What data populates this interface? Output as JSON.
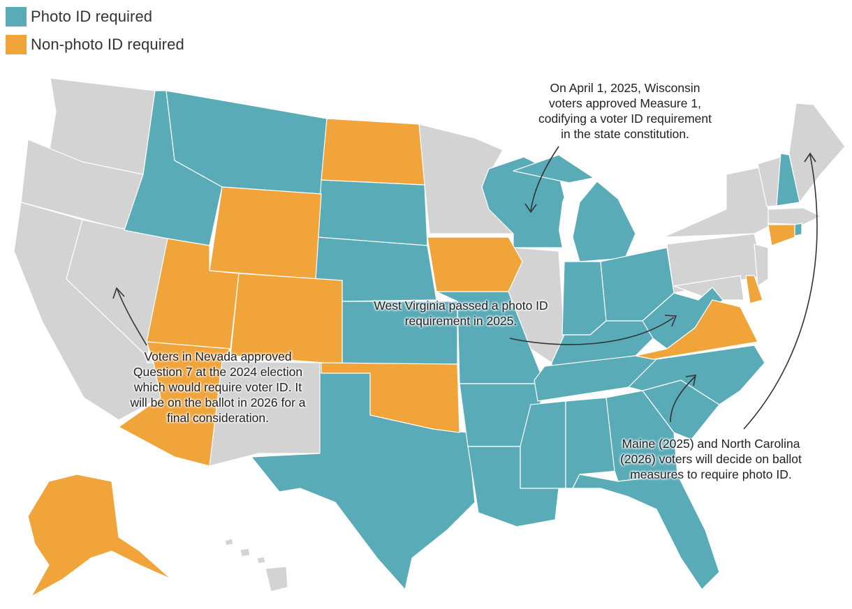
{
  "legend": [
    {
      "label": "Photo ID required",
      "color": "#5aabb8"
    },
    {
      "label": "Non-photo ID required",
      "color": "#f0a43a"
    }
  ],
  "colors": {
    "photo": "#5aabb8",
    "nonphoto": "#f0a43a",
    "none": "#d3d3d3",
    "arrow": "#333333"
  },
  "annotations": {
    "wisconsin": "On April 1, 2025, Wisconsin\nvoters approved Measure 1,\ncodifying a voter ID requirement\nin the state constitution.",
    "west_virginia": "West Virginia passed a photo ID\nrequirement in 2025.",
    "nevada": "Voters in Nevada approved\nQuestion 7 at the 2024 election\nwhich would require voter ID. It\nwill be on the ballot in 2026 for a\nfinal consideration.",
    "maine_nc": "Maine (2025) and North Carolina\n(2026) voters will decide on ballot\nmeasures to require photo ID."
  },
  "states": {
    "photo_id": [
      "Idaho",
      "Montana",
      "South Dakota",
      "Nebraska",
      "Kansas",
      "Texas",
      "Arkansas",
      "Louisiana",
      "Missouri",
      "Wisconsin",
      "Michigan",
      "Indiana",
      "Ohio",
      "Kentucky",
      "Tennessee",
      "Mississippi",
      "Alabama",
      "Georgia",
      "Florida",
      "South Carolina",
      "North Carolina",
      "West Virginia",
      "New Hampshire",
      "Rhode Island"
    ],
    "non_photo_id": [
      "North Dakota",
      "Wyoming",
      "Utah",
      "Colorado",
      "Arizona",
      "Oklahoma",
      "Iowa",
      "Virginia",
      "Connecticut",
      "Delaware",
      "Alaska"
    ],
    "no_id": [
      "Washington",
      "Oregon",
      "California",
      "Nevada",
      "New Mexico",
      "Minnesota",
      "Illinois",
      "Pennsylvania",
      "New York",
      "Vermont",
      "Maine",
      "Massachusetts",
      "New Jersey",
      "Maryland",
      "Hawaii"
    ]
  }
}
